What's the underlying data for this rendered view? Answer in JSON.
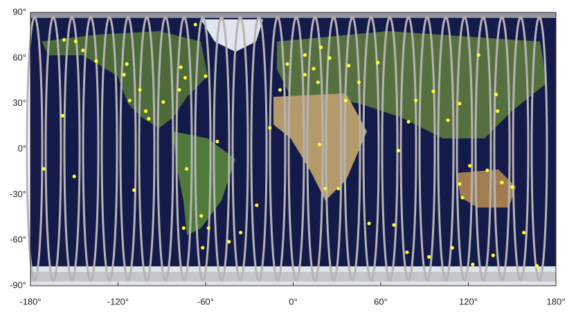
{
  "chart_data": {
    "type": "scatter",
    "xlim": [
      -180,
      180
    ],
    "ylim": [
      -90,
      90
    ],
    "xticks": [
      {
        "value": -180,
        "label": "-180°"
      },
      {
        "value": -120,
        "label": "-120°"
      },
      {
        "value": -60,
        "label": "-60°"
      },
      {
        "value": 0,
        "label": "0°"
      },
      {
        "value": 60,
        "label": "60°"
      },
      {
        "value": 120,
        "label": "120°"
      },
      {
        "value": 180,
        "label": "180°"
      }
    ],
    "yticks": [
      {
        "value": -90,
        "label": "-90°"
      },
      {
        "value": -60,
        "label": "-60°"
      },
      {
        "value": -30,
        "label": "-30°"
      },
      {
        "value": 0,
        "label": "0°"
      },
      {
        "value": 30,
        "label": "30°"
      },
      {
        "value": 60,
        "label": "60°"
      },
      {
        "value": 90,
        "label": "90°"
      }
    ],
    "color": "#ffff33",
    "x": [
      -157,
      -149,
      -135,
      -144,
      -171,
      -158,
      -150,
      -109,
      -114,
      -116,
      -112,
      -105,
      -101,
      -99,
      -89,
      -78,
      -77,
      -74,
      -67,
      -60,
      -73,
      -52,
      -75,
      -63,
      -58,
      -62,
      -44,
      -36,
      -25,
      -16,
      -9,
      -4,
      8,
      14,
      19,
      25,
      8,
      17,
      36,
      38,
      45,
      18,
      22,
      31,
      52,
      58,
      69,
      72,
      79,
      84,
      93,
      96,
      106,
      109,
      114,
      121,
      114,
      116,
      127,
      137,
      140,
      139,
      133,
      143,
      150,
      158,
      167,
      123,
      78
    ],
    "values": [
      72,
      71,
      58,
      65,
      -13,
      22,
      -18,
      -27,
      56,
      49,
      32,
      39,
      25,
      20,
      31,
      39,
      54,
      47,
      82,
      48,
      -13,
      5,
      -52,
      -44,
      -52,
      -65,
      -61,
      -55,
      -37,
      14,
      39,
      56,
      62,
      53,
      67,
      60,
      49,
      44,
      32,
      55,
      44,
      3,
      -26,
      -26,
      -49,
      57,
      -50,
      -1,
      18,
      32,
      -71,
      38,
      19,
      -65,
      30,
      -11,
      -23,
      -32,
      62,
      -70,
      25,
      36,
      -14,
      -22,
      -25,
      -55,
      -77,
      -76,
      -68
    ]
  }
}
